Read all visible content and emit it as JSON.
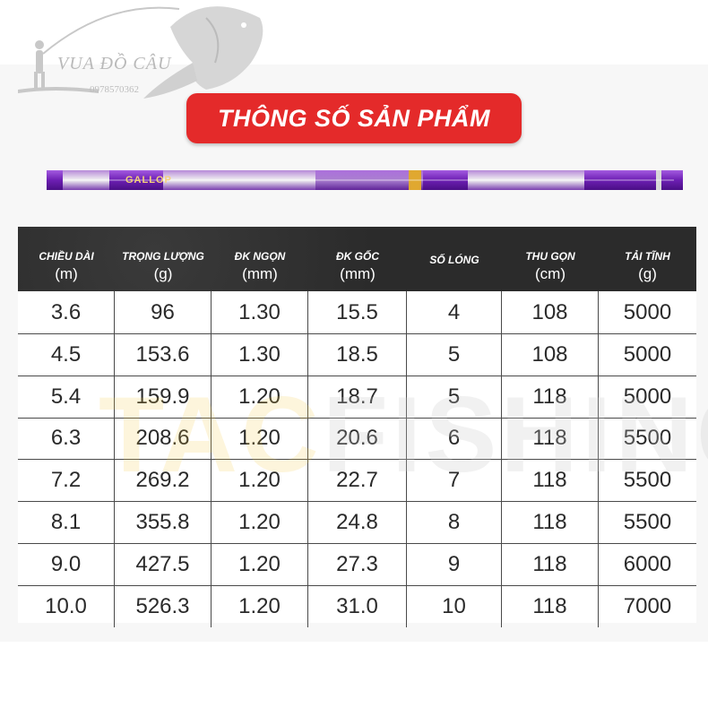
{
  "brand": {
    "name": "VUA ĐỒ CÂU",
    "phone": "0978570362"
  },
  "title": "THÔNG SỐ SẢN PHẨM",
  "rod_label": "GALLOP",
  "watermark": {
    "part1": "TAC",
    "part2": "FISHING"
  },
  "colors": {
    "accent_red": "#e42a2a",
    "header_dark": "#2b2b2b",
    "rod_purple": "#8b2fc9"
  },
  "table": {
    "headers": [
      {
        "label": "CHIỀU DÀI",
        "unit": "(m)"
      },
      {
        "label": "TRỌNG LƯỢNG",
        "unit": "(g)"
      },
      {
        "label": "ĐK NGỌN",
        "unit": "(mm)"
      },
      {
        "label": "ĐK GỐC",
        "unit": "(mm)"
      },
      {
        "label": "SỐ LÓNG",
        "unit": ""
      },
      {
        "label": "THU GỌN",
        "unit": "(cm)"
      },
      {
        "label": "TẢI TĨNH",
        "unit": "(g)"
      }
    ],
    "rows": [
      [
        "3.6",
        "96",
        "1.30",
        "15.5",
        "4",
        "108",
        "5000"
      ],
      [
        "4.5",
        "153.6",
        "1.30",
        "18.5",
        "5",
        "108",
        "5000"
      ],
      [
        "5.4",
        "159.9",
        "1.20",
        "18.7",
        "5",
        "118",
        "5000"
      ],
      [
        "6.3",
        "208.6",
        "1.20",
        "20.6",
        "6",
        "118",
        "5500"
      ],
      [
        "7.2",
        "269.2",
        "1.20",
        "22.7",
        "7",
        "118",
        "5500"
      ],
      [
        "8.1",
        "355.8",
        "1.20",
        "24.8",
        "8",
        "118",
        "5500"
      ],
      [
        "9.0",
        "427.5",
        "1.20",
        "27.3",
        "9",
        "118",
        "6000"
      ],
      [
        "10.0",
        "526.3",
        "1.20",
        "31.0",
        "10",
        "118",
        "7000"
      ]
    ]
  }
}
